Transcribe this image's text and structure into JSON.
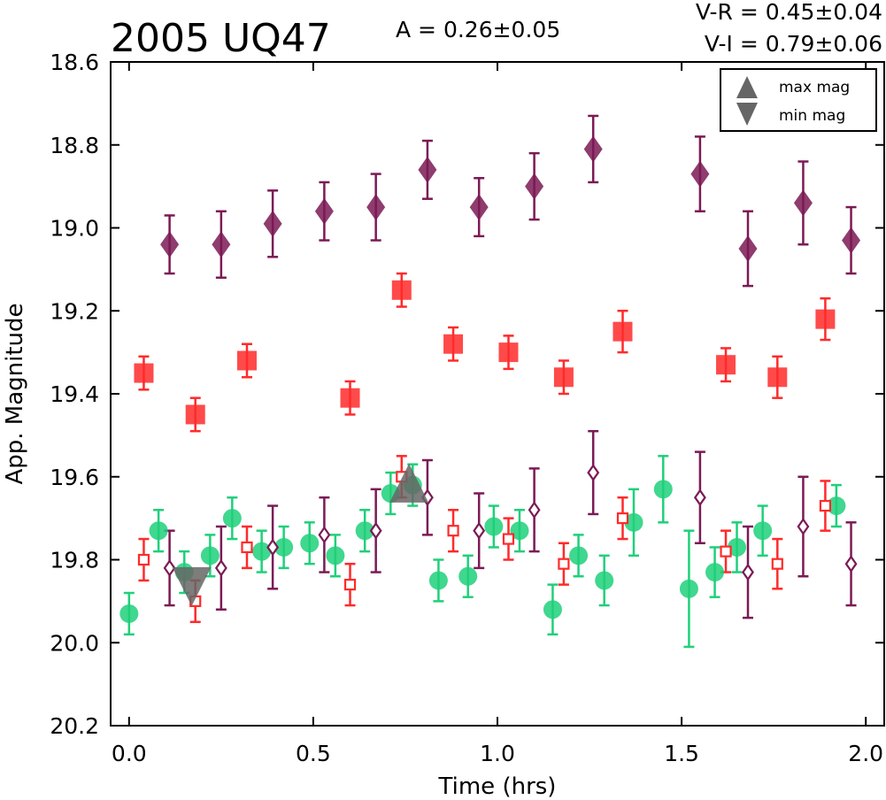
{
  "header": {
    "object_name": "2005 UQ47",
    "amplitude": "A  = 0.26±0.05",
    "color_vr": "V-R = 0.45±0.04",
    "color_vi": "V-I  = 0.79±0.06"
  },
  "legend": {
    "max_label": "max mag",
    "min_label": "min mag",
    "placement": "top-right"
  },
  "colors": {
    "dark_series": "#7b1a55",
    "red_series": "#ff2a2a",
    "green_series": "#1fd07a",
    "markers_gray": "#666666"
  },
  "chart_data": {
    "type": "scatter",
    "xlabel": "Time (hrs)",
    "ylabel": "App. Magnitude",
    "xlim": [
      -0.05,
      2.05
    ],
    "ylim": [
      20.2,
      18.6
    ],
    "y_inverted": true,
    "grid": false,
    "xticks": [
      "0.0",
      "0.5",
      "1.0",
      "1.5",
      "2.0"
    ],
    "xtick_values": [
      0.0,
      0.5,
      1.0,
      1.5,
      2.0
    ],
    "yticks": [
      "18.6",
      "18.8",
      "19.0",
      "19.2",
      "19.4",
      "19.6",
      "19.8",
      "20.0",
      "20.2"
    ],
    "ytick_values": [
      18.6,
      18.8,
      19.0,
      19.2,
      19.4,
      19.6,
      19.8,
      20.0,
      20.2
    ],
    "series": [
      {
        "marker": "diamond",
        "filled": true,
        "color": "#7b1a55",
        "points": [
          {
            "x": 0.11,
            "y": 19.04,
            "err": 0.07
          },
          {
            "x": 0.25,
            "y": 19.04,
            "err": 0.08
          },
          {
            "x": 0.39,
            "y": 18.99,
            "err": 0.08
          },
          {
            "x": 0.53,
            "y": 18.96,
            "err": 0.07
          },
          {
            "x": 0.67,
            "y": 18.95,
            "err": 0.08
          },
          {
            "x": 0.81,
            "y": 18.86,
            "err": 0.07
          },
          {
            "x": 0.95,
            "y": 18.95,
            "err": 0.07
          },
          {
            "x": 1.1,
            "y": 18.9,
            "err": 0.08
          },
          {
            "x": 1.26,
            "y": 18.81,
            "err": 0.08
          },
          {
            "x": 1.55,
            "y": 18.87,
            "err": 0.09
          },
          {
            "x": 1.68,
            "y": 19.05,
            "err": 0.09
          },
          {
            "x": 1.83,
            "y": 18.94,
            "err": 0.1
          },
          {
            "x": 1.96,
            "y": 19.03,
            "err": 0.08
          }
        ]
      },
      {
        "marker": "square",
        "filled": true,
        "color": "#ff2a2a",
        "points": [
          {
            "x": 0.04,
            "y": 19.35,
            "err": 0.04
          },
          {
            "x": 0.18,
            "y": 19.45,
            "err": 0.04
          },
          {
            "x": 0.32,
            "y": 19.32,
            "err": 0.04
          },
          {
            "x": 0.6,
            "y": 19.41,
            "err": 0.04
          },
          {
            "x": 0.74,
            "y": 19.15,
            "err": 0.04
          },
          {
            "x": 0.88,
            "y": 19.28,
            "err": 0.04
          },
          {
            "x": 1.03,
            "y": 19.3,
            "err": 0.04
          },
          {
            "x": 1.18,
            "y": 19.36,
            "err": 0.04
          },
          {
            "x": 1.34,
            "y": 19.25,
            "err": 0.05
          },
          {
            "x": 1.62,
            "y": 19.33,
            "err": 0.04
          },
          {
            "x": 1.76,
            "y": 19.36,
            "err": 0.05
          },
          {
            "x": 1.89,
            "y": 19.22,
            "err": 0.05
          }
        ]
      },
      {
        "marker": "circle",
        "filled": true,
        "color": "#1fd07a",
        "points": [
          {
            "x": 0.0,
            "y": 19.93,
            "err": 0.05
          },
          {
            "x": 0.08,
            "y": 19.73,
            "err": 0.05
          },
          {
            "x": 0.15,
            "y": 19.83,
            "err": 0.05
          },
          {
            "x": 0.22,
            "y": 19.79,
            "err": 0.05
          },
          {
            "x": 0.28,
            "y": 19.7,
            "err": 0.05
          },
          {
            "x": 0.36,
            "y": 19.78,
            "err": 0.05
          },
          {
            "x": 0.42,
            "y": 19.77,
            "err": 0.05
          },
          {
            "x": 0.49,
            "y": 19.76,
            "err": 0.05
          },
          {
            "x": 0.56,
            "y": 19.79,
            "err": 0.05
          },
          {
            "x": 0.64,
            "y": 19.73,
            "err": 0.05
          },
          {
            "x": 0.71,
            "y": 19.64,
            "err": 0.05
          },
          {
            "x": 0.77,
            "y": 19.62,
            "err": 0.05
          },
          {
            "x": 0.84,
            "y": 19.85,
            "err": 0.05
          },
          {
            "x": 0.92,
            "y": 19.84,
            "err": 0.05
          },
          {
            "x": 0.99,
            "y": 19.72,
            "err": 0.05
          },
          {
            "x": 1.06,
            "y": 19.73,
            "err": 0.05
          },
          {
            "x": 1.15,
            "y": 19.92,
            "err": 0.06
          },
          {
            "x": 1.22,
            "y": 19.79,
            "err": 0.05
          },
          {
            "x": 1.29,
            "y": 19.85,
            "err": 0.06
          },
          {
            "x": 1.37,
            "y": 19.71,
            "err": 0.08
          },
          {
            "x": 1.45,
            "y": 19.63,
            "err": 0.08
          },
          {
            "x": 1.52,
            "y": 19.87,
            "err": 0.14
          },
          {
            "x": 1.59,
            "y": 19.83,
            "err": 0.06
          },
          {
            "x": 1.65,
            "y": 19.77,
            "err": 0.06
          },
          {
            "x": 1.72,
            "y": 19.73,
            "err": 0.06
          },
          {
            "x": 1.92,
            "y": 19.67,
            "err": 0.05
          }
        ]
      },
      {
        "marker": "square",
        "filled": false,
        "color": "#ff2a2a",
        "points": [
          {
            "x": 0.04,
            "y": 19.8,
            "err": 0.05
          },
          {
            "x": 0.18,
            "y": 19.9,
            "err": 0.05
          },
          {
            "x": 0.32,
            "y": 19.77,
            "err": 0.05
          },
          {
            "x": 0.6,
            "y": 19.86,
            "err": 0.05
          },
          {
            "x": 0.74,
            "y": 19.6,
            "err": 0.05
          },
          {
            "x": 0.88,
            "y": 19.73,
            "err": 0.05
          },
          {
            "x": 1.03,
            "y": 19.75,
            "err": 0.05
          },
          {
            "x": 1.18,
            "y": 19.81,
            "err": 0.05
          },
          {
            "x": 1.34,
            "y": 19.7,
            "err": 0.05
          },
          {
            "x": 1.62,
            "y": 19.78,
            "err": 0.05
          },
          {
            "x": 1.76,
            "y": 19.81,
            "err": 0.06
          },
          {
            "x": 1.89,
            "y": 19.67,
            "err": 0.06
          }
        ]
      },
      {
        "marker": "diamond",
        "filled": false,
        "color": "#7b1a55",
        "points": [
          {
            "x": 0.11,
            "y": 19.82,
            "err": 0.09
          },
          {
            "x": 0.25,
            "y": 19.82,
            "err": 0.1
          },
          {
            "x": 0.39,
            "y": 19.77,
            "err": 0.1
          },
          {
            "x": 0.53,
            "y": 19.74,
            "err": 0.09
          },
          {
            "x": 0.67,
            "y": 19.73,
            "err": 0.1
          },
          {
            "x": 0.81,
            "y": 19.65,
            "err": 0.09
          },
          {
            "x": 0.95,
            "y": 19.73,
            "err": 0.09
          },
          {
            "x": 1.1,
            "y": 19.68,
            "err": 0.1
          },
          {
            "x": 1.26,
            "y": 19.59,
            "err": 0.1
          },
          {
            "x": 1.55,
            "y": 19.65,
            "err": 0.11
          },
          {
            "x": 1.68,
            "y": 19.83,
            "err": 0.11
          },
          {
            "x": 1.83,
            "y": 19.72,
            "err": 0.12
          },
          {
            "x": 1.96,
            "y": 19.81,
            "err": 0.1
          }
        ]
      }
    ],
    "markers": [
      {
        "name": "max mag",
        "shape": "triangle-up",
        "x": 0.76,
        "y": 19.62,
        "color": "#666666"
      },
      {
        "name": "min mag",
        "shape": "triangle-down",
        "x": 0.17,
        "y": 19.86,
        "color": "#666666"
      }
    ]
  }
}
